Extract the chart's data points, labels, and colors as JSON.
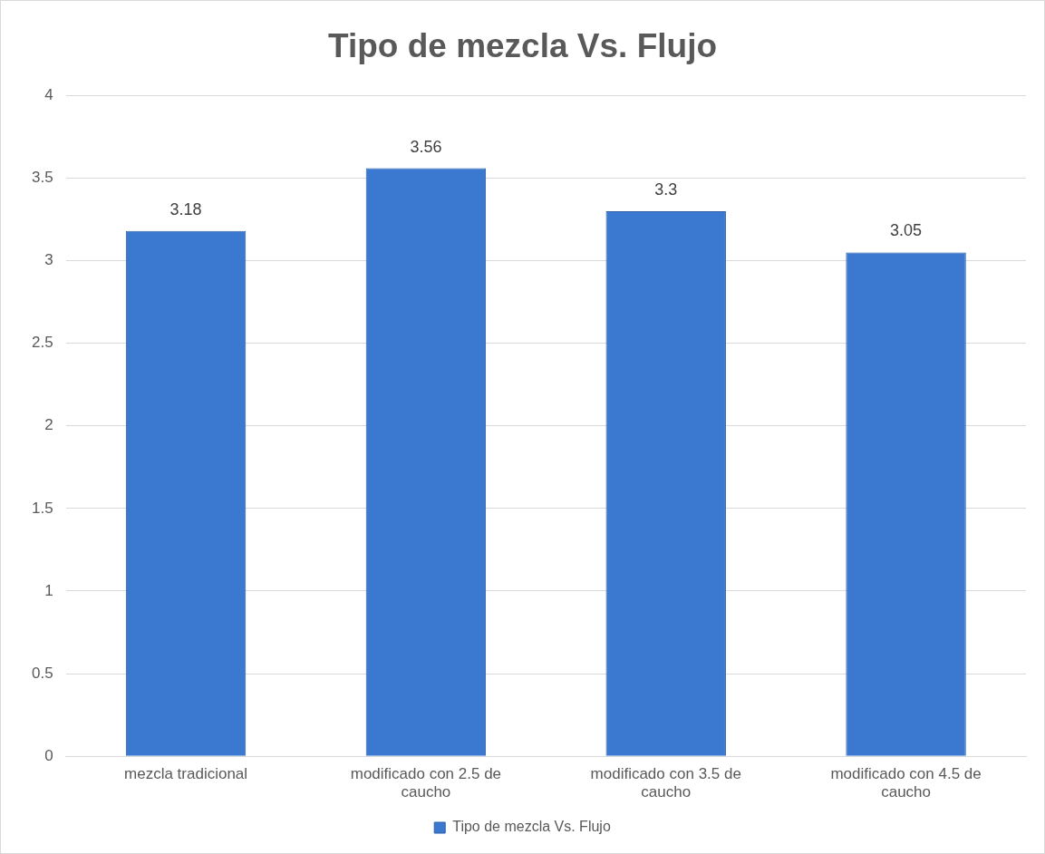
{
  "chart_data": {
    "type": "bar",
    "title": "Tipo de mezcla Vs. Flujo",
    "categories": [
      "mezcla tradicional",
      "modificado con 2.5 de caucho",
      "modificado con 3.5 de caucho",
      "modificado con 4.5 de caucho"
    ],
    "series": [
      {
        "name": "Tipo de mezcla Vs. Flujo",
        "color": "#3b78d0",
        "values": [
          3.18,
          3.56,
          3.3,
          3.05
        ]
      }
    ],
    "ylim": [
      0,
      4
    ],
    "yticks": [
      0,
      0.5,
      1,
      1.5,
      2,
      2.5,
      3,
      3.5,
      4
    ],
    "grid": "y",
    "legend": "bottom",
    "data_labels": true
  }
}
